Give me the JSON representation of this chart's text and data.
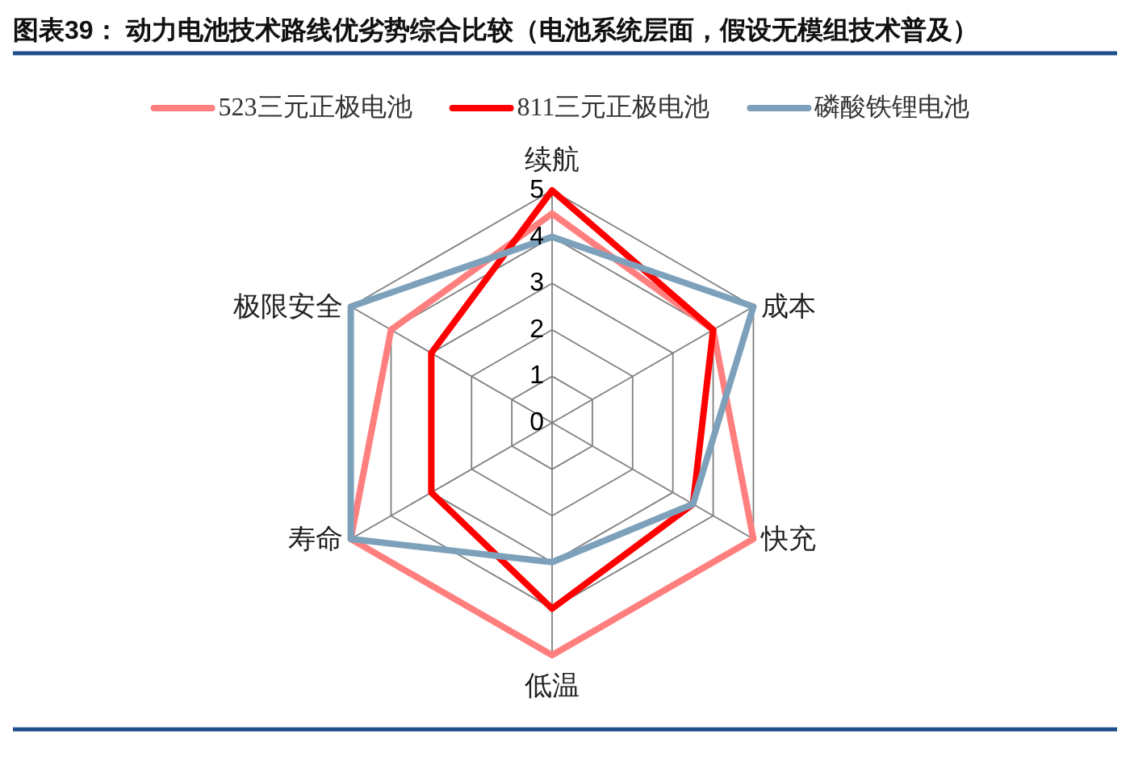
{
  "chart_data": {
    "type": "radar",
    "title": "图表39： 动力电池技术路线优劣势综合比较（电池系统层面，假设无模组技术普及）",
    "categories": [
      "续航",
      "成本",
      "快充",
      "低温",
      "寿命",
      "极限安全"
    ],
    "series": [
      {
        "name": "523三元正极电池",
        "color": "#ff7f7f",
        "values": [
          4.5,
          4,
          5,
          5,
          5,
          4
        ]
      },
      {
        "name": "811三元正极电池",
        "color": "#ff0000",
        "values": [
          5,
          4,
          3.5,
          4,
          3,
          3
        ]
      },
      {
        "name": "磷酸铁锂电池",
        "color": "#7ea1bb",
        "values": [
          4,
          5,
          3.5,
          3,
          5,
          5
        ]
      }
    ],
    "ylim": [
      0,
      5
    ],
    "yticks": [
      0,
      1,
      2,
      3,
      4,
      5
    ],
    "grid": true,
    "legend": "top"
  }
}
